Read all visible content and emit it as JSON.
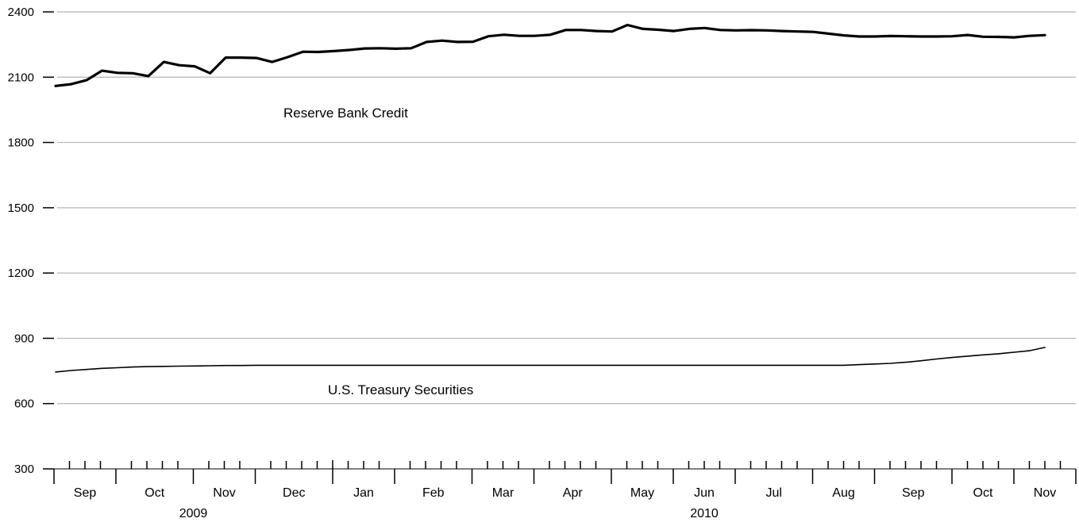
{
  "chart_data": {
    "type": "line",
    "title": "",
    "xlabel": "",
    "ylabel": "",
    "ylim": [
      300,
      2400
    ],
    "yticks": [
      300,
      600,
      900,
      1200,
      1500,
      1800,
      2100,
      2400
    ],
    "ytick_labels": [
      "300",
      "600",
      "900",
      "1200",
      "1500",
      "1800",
      "2100",
      "2400"
    ],
    "grid": "horizontal",
    "x_axis": {
      "months": [
        {
          "label": "Sep",
          "year": 2009,
          "weeks": 4
        },
        {
          "label": "Oct",
          "year": 2009,
          "weeks": 5
        },
        {
          "label": "Nov",
          "year": 2009,
          "weeks": 4
        },
        {
          "label": "Dec",
          "year": 2009,
          "weeks": 5
        },
        {
          "label": "Jan",
          "year": 2010,
          "weeks": 4
        },
        {
          "label": "Feb",
          "year": 2010,
          "weeks": 5
        },
        {
          "label": "Mar",
          "year": 2010,
          "weeks": 4
        },
        {
          "label": "Apr",
          "year": 2010,
          "weeks": 5
        },
        {
          "label": "May",
          "year": 2010,
          "weeks": 4
        },
        {
          "label": "Jun",
          "year": 2010,
          "weeks": 4
        },
        {
          "label": "Jul",
          "year": 2010,
          "weeks": 5
        },
        {
          "label": "Aug",
          "year": 2010,
          "weeks": 4
        },
        {
          "label": "Sep",
          "year": 2010,
          "weeks": 5
        },
        {
          "label": "Oct",
          "year": 2010,
          "weeks": 4
        },
        {
          "label": "Nov",
          "year": 2010,
          "weeks": 4
        }
      ],
      "year_labels": [
        {
          "label": "2009",
          "first_month": 0,
          "last_month": 3
        },
        {
          "label": "2010",
          "first_month": 4,
          "last_month": 14
        }
      ]
    },
    "series": [
      {
        "name": "Reserve Bank Credit",
        "line_width": "thick",
        "color": "#000000",
        "values": [
          2060,
          2068,
          2086,
          2130,
          2120,
          2118,
          2105,
          2170,
          2155,
          2150,
          2118,
          2190,
          2190,
          2188,
          2170,
          2192,
          2217,
          2216,
          2220,
          2225,
          2232,
          2233,
          2231,
          2233,
          2262,
          2268,
          2262,
          2263,
          2288,
          2295,
          2290,
          2290,
          2295,
          2317,
          2317,
          2312,
          2310,
          2340,
          2322,
          2318,
          2312,
          2322,
          2326,
          2317,
          2315,
          2316,
          2315,
          2312,
          2310,
          2308,
          2300,
          2292,
          2287,
          2287,
          2289,
          2288,
          2287,
          2287,
          2288,
          2294,
          2286,
          2285,
          2283,
          2290,
          2293
        ]
      },
      {
        "name": "U.S. Treasury Securities",
        "line_width": "thin",
        "color": "#000000",
        "values": [
          745,
          752,
          757,
          762,
          765,
          768,
          770,
          771,
          772,
          773,
          774,
          775,
          775,
          776,
          776,
          776,
          776,
          776,
          776,
          776,
          776,
          776,
          776,
          776,
          776,
          776,
          776,
          776,
          776,
          776,
          776,
          776,
          776,
          776,
          776,
          776,
          776,
          776,
          776,
          776,
          776,
          776,
          776,
          776,
          776,
          776,
          776,
          776,
          776,
          776,
          776,
          776,
          779,
          782,
          785,
          790,
          797,
          805,
          812,
          818,
          824,
          829,
          836,
          843,
          858
        ]
      }
    ],
    "annotations": [
      {
        "text": "Reserve Bank Credit",
        "series": 0
      },
      {
        "text": "U.S. Treasury Securities",
        "series": 1
      }
    ]
  }
}
